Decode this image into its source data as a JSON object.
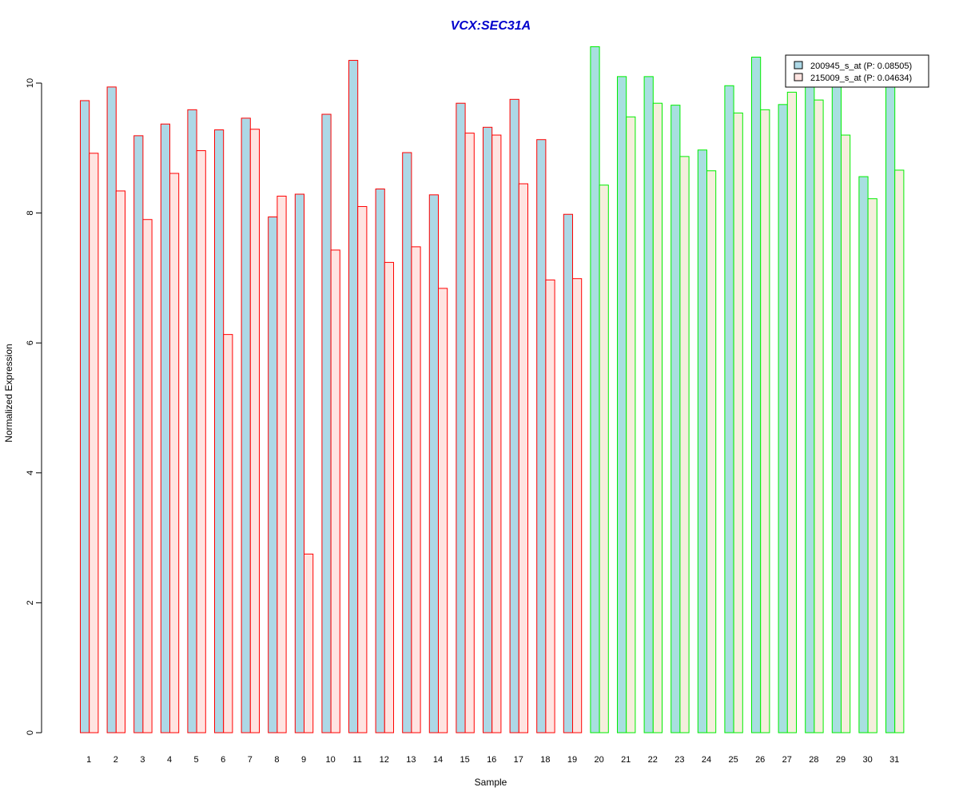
{
  "chart_data": {
    "type": "bar",
    "title": "VCX:SEC31A",
    "xlabel": "Sample",
    "ylabel": "Normalized Expression",
    "ylim": [
      0,
      10.55
    ],
    "y_ticks": [
      0,
      2,
      4,
      6,
      8,
      10
    ],
    "grid": false,
    "legend_position": "top-right",
    "categories": [
      "1",
      "2",
      "3",
      "4",
      "5",
      "6",
      "7",
      "8",
      "9",
      "10",
      "11",
      "12",
      "13",
      "14",
      "15",
      "16",
      "17",
      "18",
      "19",
      "20",
      "21",
      "22",
      "23",
      "24",
      "25",
      "26",
      "27",
      "28",
      "29",
      "30",
      "31"
    ],
    "group_split_after": 19,
    "series": [
      {
        "name": "200945_s_at (P: 0.08505)",
        "values": [
          9.73,
          9.94,
          9.19,
          9.37,
          9.59,
          9.28,
          9.46,
          7.94,
          8.29,
          9.52,
          10.35,
          8.37,
          8.93,
          8.28,
          9.69,
          9.32,
          9.75,
          9.13,
          7.98,
          10.56,
          10.1,
          10.1,
          9.66,
          8.97,
          9.96,
          10.4,
          9.67,
          10.0,
          9.97,
          8.56,
          10.0
        ]
      },
      {
        "name": "215009_s_at (P: 0.04634)",
        "values": [
          8.92,
          8.34,
          7.9,
          8.61,
          8.96,
          6.13,
          9.29,
          8.26,
          2.75,
          7.43,
          8.1,
          7.24,
          7.48,
          6.84,
          9.23,
          9.2,
          8.45,
          6.97,
          6.99,
          8.43,
          9.48,
          9.69,
          8.87,
          8.65,
          9.54,
          9.59,
          9.86,
          9.74,
          9.2,
          8.22,
          8.66
        ]
      }
    ],
    "colors": {
      "title": "#0000cc",
      "series1_fill_group1": "#add8e6",
      "series2_fill_group1": "#ffe4e1",
      "series1_fill_group2": "#a8dfe0",
      "series2_fill_group2": "#f5eedc",
      "border_group1": "#ff0000",
      "border_group2": "#00ee00",
      "legend_swatch_1": "#add8e6",
      "legend_swatch_2": "#ffe4e1",
      "axis": "#000000"
    }
  }
}
